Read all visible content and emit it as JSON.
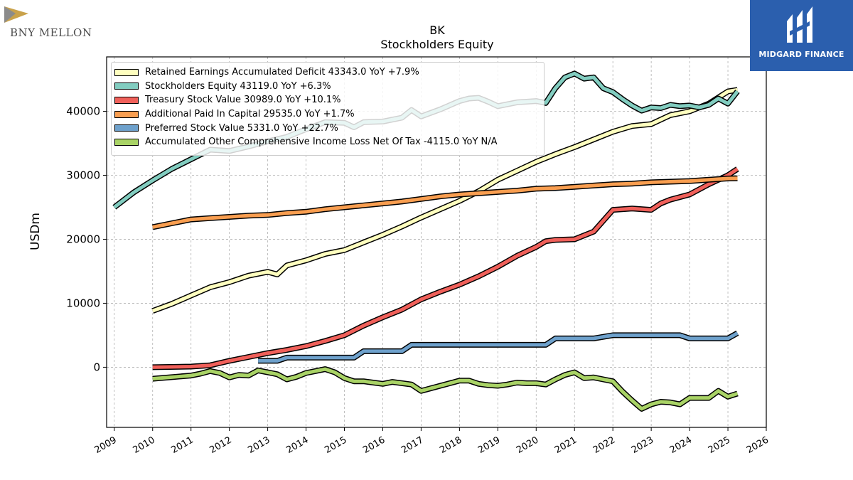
{
  "brand": {
    "name": "BNY MELLON",
    "icon": "bny-mellon-logo-icon"
  },
  "watermark": {
    "name": "MIDGARD FINANCE",
    "icon": "midgard-logo-icon",
    "color": "#2b5fae"
  },
  "chart_data": {
    "type": "line",
    "title": "BK",
    "subtitle": "Stockholders  Equity",
    "ylabel": "USDm",
    "xlabel": "",
    "xlim": [
      2008.8,
      2026
    ],
    "ylim": [
      -9400,
      48500
    ],
    "x_ticks": [
      2009,
      2010,
      2011,
      2012,
      2013,
      2014,
      2015,
      2016,
      2017,
      2018,
      2019,
      2020,
      2021,
      2022,
      2023,
      2024,
      2025,
      2026
    ],
    "y_ticks": [
      0,
      10000,
      20000,
      30000,
      40000
    ],
    "grid": true,
    "legend_position": "top-left",
    "series": [
      {
        "name": "Retained Earnings Accumulated Deficit",
        "legend_label": "Retained Earnings Accumulated Deficit  43343.0 YoY +7.9%",
        "color": "#ffffbf",
        "x": [
          2010.0,
          2010.5,
          2011.0,
          2011.5,
          2012.0,
          2012.5,
          2013.0,
          2013.25,
          2013.5,
          2014.0,
          2014.5,
          2015.0,
          2015.5,
          2016.0,
          2016.5,
          2017.0,
          2017.5,
          2018.0,
          2018.5,
          2019.0,
          2019.5,
          2020.0,
          2020.5,
          2021.0,
          2021.5,
          2022.0,
          2022.5,
          2023.0,
          2023.5,
          2024.0,
          2024.5,
          2025.0,
          2025.25
        ],
        "y": [
          8800,
          9900,
          11200,
          12500,
          13300,
          14300,
          14900,
          14500,
          15900,
          16700,
          17700,
          18300,
          19500,
          20700,
          22000,
          23400,
          24700,
          26000,
          27500,
          29300,
          30700,
          32100,
          33300,
          34400,
          35600,
          36800,
          37700,
          38000,
          39400,
          40000,
          41200,
          43100,
          43343
        ]
      },
      {
        "name": "Stockholders Equity",
        "legend_label": "Stockholders Equity  43119.0 YoY +6.3%",
        "color": "#82cdc0",
        "x": [
          2009.0,
          2009.5,
          2010.0,
          2010.5,
          2011.0,
          2011.5,
          2012.0,
          2012.5,
          2013.0,
          2013.5,
          2014.0,
          2014.5,
          2015.0,
          2015.25,
          2015.5,
          2016.0,
          2016.5,
          2016.75,
          2017.0,
          2017.5,
          2018.0,
          2018.25,
          2018.5,
          2018.75,
          2019.0,
          2019.5,
          2020.0,
          2020.25,
          2020.5,
          2020.75,
          2021.0,
          2021.25,
          2021.5,
          2021.75,
          2022.0,
          2022.25,
          2022.5,
          2022.75,
          2023.0,
          2023.25,
          2023.5,
          2023.75,
          2024.0,
          2024.25,
          2024.5,
          2024.75,
          2025.0,
          2025.25
        ],
        "y": [
          25000,
          27300,
          29200,
          31000,
          32500,
          34000,
          33800,
          34500,
          35300,
          36000,
          37200,
          38300,
          38200,
          37500,
          38300,
          38400,
          39000,
          40200,
          39200,
          40300,
          41600,
          42000,
          42100,
          41500,
          40800,
          41400,
          41600,
          41300,
          43600,
          45300,
          45900,
          45100,
          45300,
          43600,
          43000,
          41900,
          40900,
          40100,
          40600,
          40500,
          41000,
          40800,
          40900,
          40600,
          41000,
          42000,
          41200,
          43119
        ]
      },
      {
        "name": "Treasury Stock Value",
        "legend_label": "Treasury Stock Value  30989.0 YoY +10.1%",
        "color": "#f0605a",
        "x": [
          2010.0,
          2011.0,
          2011.5,
          2012.0,
          2012.5,
          2013.0,
          2013.5,
          2014.0,
          2014.5,
          2015.0,
          2015.5,
          2016.0,
          2016.5,
          2017.0,
          2017.5,
          2018.0,
          2018.5,
          2019.0,
          2019.5,
          2020.0,
          2020.25,
          2020.5,
          2021.0,
          2021.5,
          2022.0,
          2022.5,
          2023.0,
          2023.25,
          2023.5,
          2024.0,
          2024.5,
          2025.0,
          2025.25
        ],
        "y": [
          0,
          100,
          300,
          1000,
          1600,
          2200,
          2700,
          3300,
          4100,
          5000,
          6500,
          7800,
          9000,
          10600,
          11800,
          12900,
          14200,
          15700,
          17400,
          18800,
          19700,
          19900,
          20000,
          21200,
          24600,
          24800,
          24600,
          25600,
          26200,
          27000,
          28600,
          30000,
          30989
        ]
      },
      {
        "name": "Additional Paid In Capital",
        "legend_label": "Additional Paid In Capital  29535.0 YoY +1.7%",
        "color": "#f99e50",
        "x": [
          2010.0,
          2010.5,
          2011.0,
          2011.5,
          2012.0,
          2012.5,
          2013.0,
          2013.5,
          2014.0,
          2014.5,
          2015.0,
          2015.5,
          2016.0,
          2016.5,
          2017.0,
          2017.5,
          2018.0,
          2018.5,
          2019.0,
          2019.5,
          2020.0,
          2020.5,
          2021.0,
          2021.5,
          2022.0,
          2022.5,
          2023.0,
          2023.5,
          2024.0,
          2024.5,
          2025.0,
          2025.25
        ],
        "y": [
          21900,
          22500,
          23100,
          23300,
          23500,
          23700,
          23800,
          24100,
          24300,
          24700,
          25000,
          25300,
          25600,
          25900,
          26300,
          26700,
          27000,
          27200,
          27400,
          27600,
          27900,
          28000,
          28200,
          28400,
          28600,
          28700,
          28900,
          29000,
          29100,
          29300,
          29500,
          29535
        ]
      },
      {
        "name": "Preferred Stock Value",
        "legend_label": "Preferred Stock Value  5331.0 YoY +22.7%",
        "color": "#6ea1cc",
        "x": [
          2012.75,
          2013.25,
          2013.5,
          2014.5,
          2015.25,
          2015.5,
          2016.5,
          2016.75,
          2017.5,
          2019.5,
          2020.25,
          2020.5,
          2021.5,
          2022.0,
          2023.75,
          2024.0,
          2025.0,
          2025.25
        ],
        "y": [
          1000,
          1000,
          1500,
          1500,
          1500,
          2500,
          2500,
          3500,
          3500,
          3500,
          3500,
          4500,
          4500,
          5000,
          5000,
          4500,
          4500,
          5331
        ]
      },
      {
        "name": "Accumulated Other Comprehensive Income Loss Net Of Tax",
        "legend_label": "Accumulated Other Comprehensive Income Loss Net Of Tax  -4115.0 YoY N/A",
        "color": "#a9d366",
        "x": [
          2010.0,
          2011.0,
          2011.25,
          2011.5,
          2011.75,
          2012.0,
          2012.25,
          2012.5,
          2012.75,
          2013.0,
          2013.25,
          2013.5,
          2013.75,
          2014.0,
          2014.25,
          2014.5,
          2014.75,
          2015.0,
          2015.25,
          2015.5,
          2015.75,
          2016.0,
          2016.25,
          2016.5,
          2016.75,
          2017.0,
          2017.25,
          2017.5,
          2017.75,
          2018.0,
          2018.25,
          2018.5,
          2018.75,
          2019.0,
          2019.25,
          2019.5,
          2019.75,
          2020.0,
          2020.25,
          2020.5,
          2020.75,
          2021.0,
          2021.25,
          2021.5,
          2021.75,
          2022.0,
          2022.25,
          2022.5,
          2022.75,
          2023.0,
          2023.25,
          2023.5,
          2023.75,
          2024.0,
          2024.25,
          2024.5,
          2024.75,
          2025.0,
          2025.25
        ],
        "y": [
          -1800,
          -1300,
          -1000,
          -600,
          -900,
          -1600,
          -1200,
          -1300,
          -500,
          -800,
          -1100,
          -1900,
          -1500,
          -900,
          -600,
          -300,
          -800,
          -1700,
          -2200,
          -2200,
          -2400,
          -2600,
          -2300,
          -2500,
          -2700,
          -3700,
          -3300,
          -2900,
          -2500,
          -2100,
          -2100,
          -2600,
          -2800,
          -2900,
          -2700,
          -2400,
          -2500,
          -2500,
          -2700,
          -1900,
          -1200,
          -800,
          -1700,
          -1600,
          -1900,
          -2200,
          -3800,
          -5200,
          -6500,
          -5800,
          -5400,
          -5500,
          -5800,
          -4800,
          -4800,
          -4800,
          -3700,
          -4600,
          -4115
        ]
      }
    ]
  }
}
